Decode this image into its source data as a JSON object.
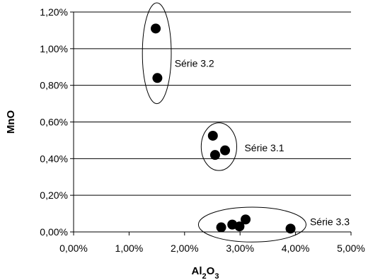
{
  "chart_data": {
    "type": "scatter",
    "title": "",
    "xlabel": "Al2O3",
    "xlabel_parts": [
      "Al",
      "2",
      "O",
      "3"
    ],
    "ylabel": "MnO",
    "xlim": [
      0,
      5
    ],
    "ylim": [
      0,
      1.2
    ],
    "x_ticks": [
      0,
      1,
      2,
      3,
      4,
      5
    ],
    "y_ticks": [
      0,
      0.2,
      0.4,
      0.6,
      0.8,
      1.0,
      1.2
    ],
    "x_tick_labels": [
      "0,00%",
      "1,00%",
      "2,00%",
      "3,00%",
      "4,00%",
      "5,00%"
    ],
    "y_tick_labels": [
      "0,00%",
      "0,20%",
      "0,40%",
      "0,60%",
      "0,80%",
      "1,00%",
      "1,20%"
    ],
    "grid": "horizontal",
    "legend": "none",
    "marker_color": "#000000",
    "series": [
      {
        "label": "Série 3.2",
        "points": [
          {
            "x": 1.48,
            "y": 1.11
          },
          {
            "x": 1.51,
            "y": 0.84
          }
        ],
        "ellipse": {
          "cx": 1.5,
          "cy": 0.975,
          "rx": 0.26,
          "ry": 0.275
        },
        "label_pos": {
          "x": 1.82,
          "y": 0.92
        }
      },
      {
        "label": "Série 3.1",
        "points": [
          {
            "x": 2.51,
            "y": 0.525
          },
          {
            "x": 2.73,
            "y": 0.445
          },
          {
            "x": 2.55,
            "y": 0.42
          }
        ],
        "ellipse": {
          "cx": 2.62,
          "cy": 0.465,
          "rx": 0.32,
          "ry": 0.13
        },
        "label_pos": {
          "x": 3.08,
          "y": 0.46
        }
      },
      {
        "label": "Série 3.3",
        "points": [
          {
            "x": 2.66,
            "y": 0.025
          },
          {
            "x": 2.86,
            "y": 0.04
          },
          {
            "x": 2.99,
            "y": 0.03
          },
          {
            "x": 3.1,
            "y": 0.068
          },
          {
            "x": 3.91,
            "y": 0.018
          }
        ],
        "ellipse": {
          "cx": 3.22,
          "cy": 0.04,
          "rx": 0.97,
          "ry": 0.095
        },
        "label_pos": {
          "x": 4.26,
          "y": 0.055
        }
      }
    ]
  }
}
